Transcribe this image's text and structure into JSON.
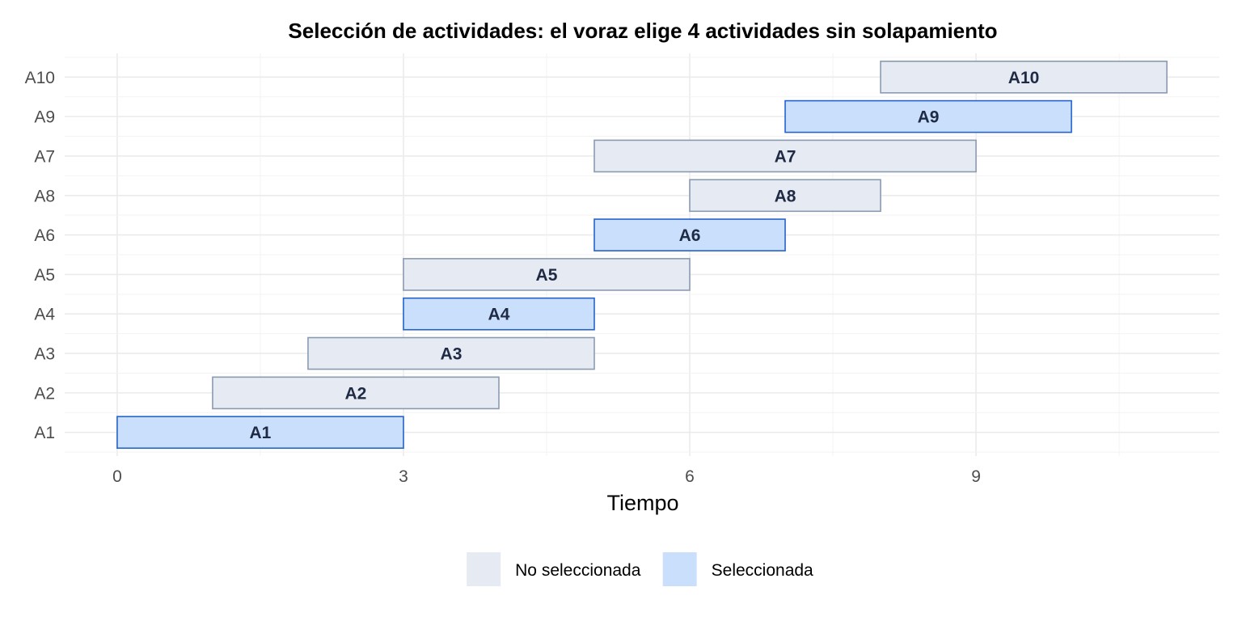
{
  "chart_data": {
    "type": "bar",
    "orientation": "horizontal-gantt",
    "title": "Selección de actividades: el voraz elige 4 actividades sin solapamiento",
    "xlabel": "Tiempo",
    "ylabel": "",
    "xlim": [
      -0.55,
      11.55
    ],
    "x_ticks": [
      0,
      3,
      6,
      9
    ],
    "x_tick_labels": [
      "0",
      "3",
      "6",
      "9"
    ],
    "categories": [
      "A1",
      "A2",
      "A3",
      "A4",
      "A5",
      "A6",
      "A8",
      "A7",
      "A9",
      "A10"
    ],
    "activities": [
      {
        "label": "A1",
        "start": 0,
        "end": 3,
        "group": "Seleccionada"
      },
      {
        "label": "A2",
        "start": 1,
        "end": 4,
        "group": "No seleccionada"
      },
      {
        "label": "A3",
        "start": 2,
        "end": 5,
        "group": "No seleccionada"
      },
      {
        "label": "A4",
        "start": 3,
        "end": 5,
        "group": "Seleccionada"
      },
      {
        "label": "A5",
        "start": 3,
        "end": 6,
        "group": "No seleccionada"
      },
      {
        "label": "A6",
        "start": 5,
        "end": 7,
        "group": "Seleccionada"
      },
      {
        "label": "A8",
        "start": 6,
        "end": 8,
        "group": "No seleccionada"
      },
      {
        "label": "A7",
        "start": 5,
        "end": 9,
        "group": "No seleccionada"
      },
      {
        "label": "A9",
        "start": 7,
        "end": 10,
        "group": "Seleccionada"
      },
      {
        "label": "A10",
        "start": 8,
        "end": 11,
        "group": "No seleccionada"
      }
    ],
    "legend": {
      "position": "bottom",
      "items": [
        {
          "name": "No seleccionada",
          "fill": "#e6eaf2",
          "stroke": "#8a9bb0"
        },
        {
          "name": "Seleccionada",
          "fill": "#c9dffc",
          "stroke": "#2563c9"
        }
      ]
    },
    "grid": true
  }
}
